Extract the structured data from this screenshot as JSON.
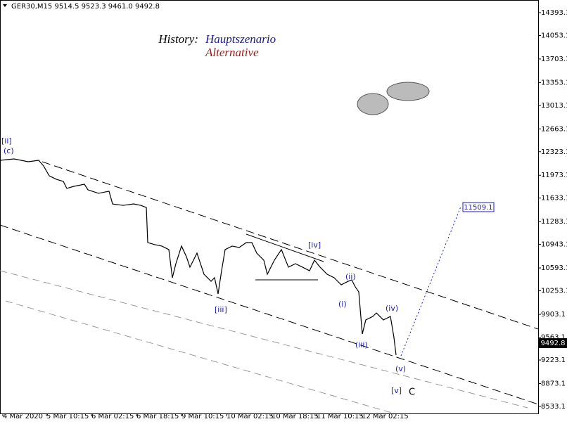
{
  "chart_data": {
    "type": "line",
    "title": "GER30,M15  9514.5 9523.3 9461.0 9492.8",
    "history_label": "History:",
    "main_label": "Hauptszenario",
    "alt_label": "Alternative",
    "target_label": "11509.1",
    "price_label": "9492.8",
    "annotations": [
      "[ii]",
      "(c)",
      "[iii]",
      "[iv]",
      "(i)",
      "(ii)",
      "(iii)",
      "(iv)",
      "(v)",
      "[v]",
      "C"
    ],
    "color": "#000000",
    "x": [
      0,
      20,
      40,
      55,
      62,
      70,
      80,
      90,
      95,
      105,
      120,
      125,
      140,
      155,
      160,
      175,
      190,
      200,
      208,
      210,
      220,
      230,
      240,
      245,
      250,
      258,
      265,
      270,
      280,
      290,
      300,
      305,
      310,
      315,
      320,
      330,
      340,
      350,
      358,
      365,
      375,
      380,
      390,
      400,
      410,
      420,
      430,
      440,
      447,
      455,
      465,
      475,
      485,
      495,
      500,
      505,
      510,
      515,
      520,
      530,
      535,
      545,
      555,
      560,
      563
    ],
    "values": [
      12195,
      12216,
      12174,
      12195,
      12111,
      11965,
      11913,
      11881,
      11777,
      11808,
      11839,
      11756,
      11704,
      11735,
      11546,
      11525,
      11546,
      11525,
      11494,
      10971,
      10940,
      10919,
      10867,
      10448,
      10657,
      10919,
      10762,
      10605,
      10814,
      10500,
      10395,
      10448,
      10207,
      10552,
      10867,
      10919,
      10898,
      10971,
      10971,
      10814,
      10709,
      10500,
      10709,
      10867,
      10605,
      10657,
      10605,
      10552,
      10709,
      10605,
      10500,
      10448,
      10343,
      10395,
      10416,
      10312,
      10238,
      9611,
      9820,
      9872,
      9924,
      9820,
      9872,
      9558,
      9297
    ],
    "xlim": [
      0,
      765
    ],
    "xticks": [
      {
        "value": 4,
        "label": "4 Mar 2020"
      },
      {
        "value": 66,
        "label": "5 Mar 10:15"
      },
      {
        "value": 130,
        "label": "6 Mar 02:15"
      },
      {
        "value": 194,
        "label": "6 Mar 18:15"
      },
      {
        "value": 258,
        "label": "9 Mar 10:15"
      },
      {
        "value": 322,
        "label": "10 Mar 02:15"
      },
      {
        "value": 386,
        "label": "10 Mar 18:15"
      },
      {
        "value": 450,
        "label": "11 Mar 10:15"
      },
      {
        "value": 514,
        "label": "12 Mar 02:15"
      }
    ],
    "ylim": [
      8428,
      14581
    ],
    "yticks": [
      14393.1,
      14053.1,
      13703.1,
      13353.1,
      13013.1,
      12663.1,
      12323.1,
      11973.1,
      11633.1,
      11283.1,
      10943.1,
      10593.1,
      10253.1,
      9903.1,
      9563.1,
      9223.1,
      8873.1,
      8533.1
    ]
  }
}
